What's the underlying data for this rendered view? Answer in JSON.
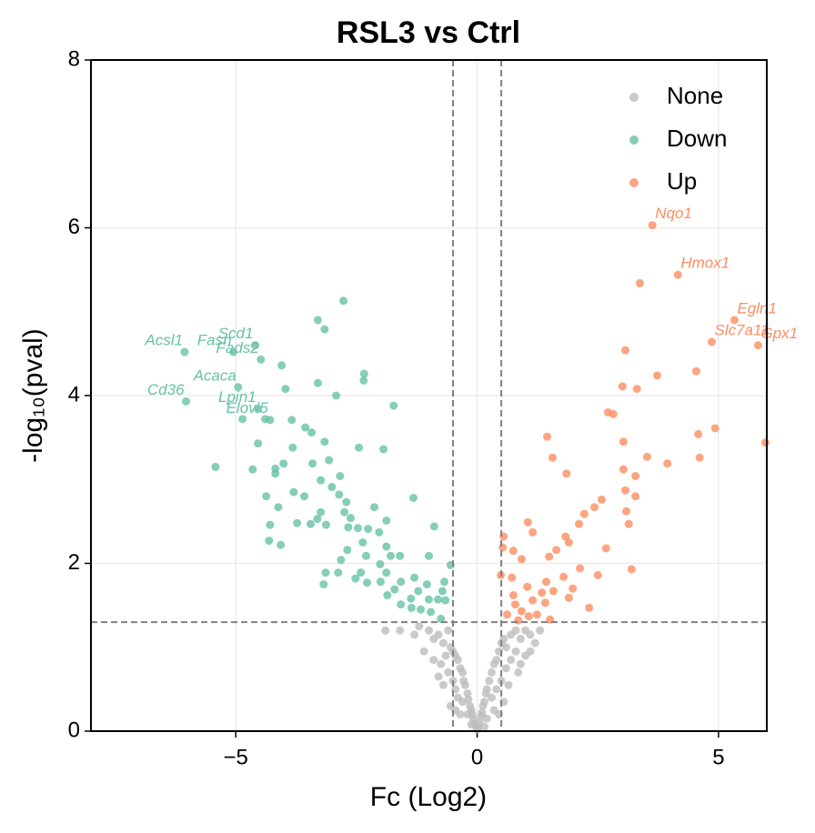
{
  "chart_data": {
    "type": "scatter",
    "title": "RSL3 vs Ctrl",
    "xlabel": "Fc (Log2)",
    "ylabel": "-log₁₀(pval)",
    "xlim": [
      -8,
      6
    ],
    "ylim": [
      0,
      8
    ],
    "xticks": [
      {
        "value": -5,
        "label": "−5"
      },
      0,
      5
    ],
    "yticks": [
      0,
      2,
      4,
      6,
      8
    ],
    "grid": true,
    "legend": "upper right",
    "thresholds": {
      "x": [
        -0.5,
        0.5
      ],
      "y": 1.3
    },
    "series": [
      {
        "name": "None",
        "color": "#bdbdbd",
        "x": [
          -1.0,
          -0.9,
          -0.8,
          -0.7,
          -0.6,
          -0.55,
          -0.5,
          -0.45,
          -0.4,
          -0.35,
          -0.3,
          -0.28,
          -0.25,
          -0.2,
          -0.18,
          -0.15,
          -0.12,
          -0.1,
          -0.08,
          -0.05,
          -0.02,
          0,
          0.02,
          0.05,
          0.08,
          0.1,
          0.12,
          0.15,
          0.18,
          0.2,
          0.25,
          0.3,
          0.35,
          0.4,
          0.45,
          0.5,
          0.55,
          0.6,
          0.7,
          0.8,
          0.9,
          1.0,
          1.1,
          1.2,
          1.3,
          -1.2,
          -1.3,
          -1.9,
          -1.6,
          -0.65,
          -0.75,
          -0.6,
          -0.5,
          -0.45,
          -0.4,
          -0.3,
          0.3,
          0.4,
          0.5,
          0.6,
          0.7,
          0.8,
          0.9,
          1.0,
          0.65,
          -0.7,
          -0.55,
          0.55,
          -0.8,
          0.85,
          -1.1,
          1.1,
          -0.9,
          0.2,
          -0.2,
          0.15,
          -0.12,
          0.35,
          -0.35,
          0.45,
          -0.45
        ],
        "values": [
          1.2,
          1.1,
          1.15,
          1.05,
          1.2,
          1.0,
          0.95,
          0.9,
          0.85,
          0.75,
          0.7,
          0.6,
          0.55,
          0.45,
          0.38,
          0.3,
          0.25,
          0.2,
          0.15,
          0.1,
          0.05,
          0.02,
          0.04,
          0.1,
          0.18,
          0.22,
          0.3,
          0.35,
          0.45,
          0.5,
          0.6,
          0.7,
          0.8,
          0.85,
          0.95,
          1.05,
          1.1,
          1.0,
          1.15,
          1.2,
          1.1,
          1.2,
          1.15,
          1.05,
          1.2,
          1.25,
          1.15,
          1.2,
          1.2,
          0.9,
          0.8,
          0.7,
          0.6,
          0.5,
          0.4,
          0.35,
          0.4,
          0.5,
          0.6,
          0.75,
          0.85,
          0.95,
          0.8,
          0.9,
          0.55,
          0.55,
          0.3,
          0.35,
          0.65,
          0.7,
          0.95,
          0.95,
          0.85,
          0.15,
          0.2,
          0.05,
          0.08,
          0.25,
          0.2,
          0.2,
          0.25
        ]
      },
      {
        "name": "Down",
        "color": "#66c2a5",
        "x": [
          -6.06,
          -5.05,
          -4.6,
          -4.48,
          -4.95,
          -6.03,
          -4.54,
          -4.29,
          -2.77,
          -3.3,
          -3.16,
          -4.05,
          -3.3,
          -3.97,
          -2.34,
          -2.35,
          -2.92,
          -1.73,
          -4.86,
          -4.39,
          -3.84,
          -3.56,
          -3.43,
          -4.54,
          -3.16,
          -3.82,
          -2.45,
          -1.94,
          -5.42,
          -4.65,
          -4.18,
          -4.01,
          -3.41,
          -3.07,
          -4.18,
          -2.84,
          -3.24,
          -3.01,
          -3.8,
          -3.58,
          -4.37,
          -2.86,
          -2.71,
          -1.32,
          -4.12,
          -3.24,
          -2.75,
          -2.62,
          -2.13,
          -3.31,
          -4.29,
          -3.73,
          -3.45,
          -3.13,
          -2.67,
          -1.88,
          -2.47,
          -2.26,
          -2.03,
          -0.89,
          -4.31,
          -4.07,
          -2.37,
          -1.88,
          -2.69,
          -2.3,
          -1.79,
          -1.6,
          -2.82,
          -2.01,
          -1.0,
          -0.55,
          -3.14,
          -2.88,
          -2.41,
          -1.88,
          -2.52,
          -1.3,
          -1.58,
          -0.68,
          -3.18,
          -2.28,
          -2.0,
          -1.04,
          -1.71,
          -1.22,
          -0.72,
          -1.86,
          -1.37,
          -1.0,
          -1.58,
          -0.81,
          -0.66,
          -1.36,
          -1.17,
          -0.96,
          -0.75
        ],
        "values": [
          4.52,
          4.52,
          4.6,
          4.43,
          4.1,
          3.93,
          3.84,
          3.71,
          5.13,
          4.9,
          4.79,
          4.36,
          4.15,
          4.08,
          4.26,
          4.18,
          4.0,
          3.88,
          3.72,
          3.72,
          3.71,
          3.62,
          3.56,
          3.43,
          3.45,
          3.38,
          3.38,
          3.36,
          3.15,
          3.12,
          3.13,
          3.19,
          3.19,
          3.23,
          3.07,
          3.04,
          2.99,
          2.91,
          2.85,
          2.8,
          2.8,
          2.82,
          2.73,
          2.78,
          2.67,
          2.61,
          2.61,
          2.54,
          2.67,
          2.53,
          2.46,
          2.48,
          2.47,
          2.46,
          2.43,
          2.51,
          2.42,
          2.41,
          2.37,
          2.44,
          2.27,
          2.22,
          2.25,
          2.2,
          2.16,
          2.09,
          2.09,
          2.09,
          2.04,
          1.99,
          2.09,
          1.98,
          1.89,
          1.89,
          1.89,
          1.89,
          1.82,
          1.83,
          1.78,
          1.78,
          1.75,
          1.77,
          1.78,
          1.75,
          1.69,
          1.67,
          1.67,
          1.62,
          1.58,
          1.57,
          1.51,
          1.57,
          1.56,
          1.47,
          1.45,
          1.42,
          1.34
        ],
        "annotations": [
          {
            "text": "Acsl1",
            "x": -6.06,
            "y": 4.52
          },
          {
            "text": "Fasn",
            "x": -5.05,
            "y": 4.52
          },
          {
            "text": "Scd1",
            "x": -4.6,
            "y": 4.6
          },
          {
            "text": "Fads2",
            "x": -4.48,
            "y": 4.43
          },
          {
            "text": "Acaca",
            "x": -4.95,
            "y": 4.1
          },
          {
            "text": "Cd36",
            "x": -6.03,
            "y": 3.93
          },
          {
            "text": "Lpin1",
            "x": -4.54,
            "y": 3.84
          },
          {
            "text": "Elovl5",
            "x": -4.29,
            "y": 3.71
          }
        ]
      },
      {
        "name": "Up",
        "color": "#fc8d62",
        "x": [
          3.63,
          4.16,
          5.33,
          4.86,
          5.82,
          3.37,
          3.07,
          3.73,
          4.54,
          3.01,
          3.31,
          2.71,
          2.82,
          4.93,
          4.58,
          5.97,
          1.45,
          3.03,
          3.52,
          1.56,
          3.94,
          4.61,
          3.03,
          1.85,
          3.28,
          3.07,
          3.28,
          2.58,
          2.43,
          3.09,
          2.22,
          2.11,
          3.14,
          1.05,
          0.55,
          1.15,
          0.53,
          1.83,
          1.9,
          2.67,
          0.75,
          1.64,
          1.49,
          0.92,
          2.13,
          3.2,
          2.5,
          0.49,
          0.72,
          1.79,
          1.43,
          1.04,
          1.98,
          1.58,
          1.34,
          0.75,
          1.9,
          1.15,
          0.79,
          2.32,
          1.41,
          0.92,
          0.62,
          1.07,
          1.24,
          0.85,
          1.51
        ],
        "values": [
          6.03,
          5.44,
          4.9,
          4.64,
          4.6,
          5.34,
          4.54,
          4.24,
          4.29,
          4.11,
          4.08,
          3.8,
          3.78,
          3.61,
          3.54,
          3.44,
          3.51,
          3.45,
          3.27,
          3.26,
          3.19,
          3.26,
          3.12,
          3.07,
          3.04,
          2.87,
          2.8,
          2.76,
          2.67,
          2.62,
          2.59,
          2.47,
          2.47,
          2.49,
          2.32,
          2.37,
          2.19,
          2.32,
          2.25,
          2.18,
          2.15,
          2.16,
          2.08,
          2.05,
          1.94,
          1.93,
          1.86,
          1.86,
          1.83,
          1.84,
          1.78,
          1.72,
          1.7,
          1.67,
          1.65,
          1.62,
          1.59,
          1.56,
          1.51,
          1.47,
          1.53,
          1.43,
          1.39,
          1.37,
          1.39,
          1.32,
          1.33
        ],
        "annotations": [
          {
            "text": "Nqo1",
            "x": 3.63,
            "y": 6.03
          },
          {
            "text": "Hmox1",
            "x": 4.16,
            "y": 5.44
          },
          {
            "text": "Egln1",
            "x": 5.33,
            "y": 4.9
          },
          {
            "text": "Slc7a11",
            "x": 4.86,
            "y": 4.64
          },
          {
            "text": "Gpx1",
            "x": 5.82,
            "y": 4.6
          }
        ]
      }
    ]
  }
}
